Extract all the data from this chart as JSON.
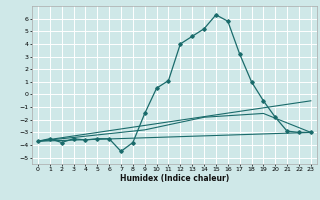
{
  "title": "",
  "xlabel": "Humidex (Indice chaleur)",
  "background_color": "#cfe8e8",
  "grid_color": "#ffffff",
  "line_color": "#1a6b6b",
  "xlim": [
    -0.5,
    23.5
  ],
  "ylim": [
    -5.5,
    7.0
  ],
  "xticks": [
    0,
    1,
    2,
    3,
    4,
    5,
    6,
    7,
    8,
    9,
    10,
    11,
    12,
    13,
    14,
    15,
    16,
    17,
    18,
    19,
    20,
    21,
    22,
    23
  ],
  "yticks": [
    -5,
    -4,
    -3,
    -2,
    -1,
    0,
    1,
    2,
    3,
    4,
    5,
    6
  ],
  "series_main": [
    [
      0,
      -3.7
    ],
    [
      1,
      -3.5
    ],
    [
      2,
      -3.8
    ],
    [
      3,
      -3.5
    ],
    [
      4,
      -3.6
    ],
    [
      5,
      -3.5
    ],
    [
      6,
      -3.5
    ],
    [
      7,
      -4.5
    ],
    [
      8,
      -3.8
    ],
    [
      9,
      -1.5
    ],
    [
      10,
      0.5
    ],
    [
      11,
      1.1
    ],
    [
      12,
      4.0
    ],
    [
      13,
      4.6
    ],
    [
      14,
      5.2
    ],
    [
      15,
      6.3
    ],
    [
      16,
      5.8
    ],
    [
      17,
      3.2
    ],
    [
      18,
      1.0
    ],
    [
      19,
      -0.5
    ],
    [
      20,
      -1.8
    ],
    [
      21,
      -2.9
    ],
    [
      22,
      -3.0
    ],
    [
      23,
      -3.0
    ]
  ],
  "series_flat": [
    [
      0,
      -3.7
    ],
    [
      23,
      -3.0
    ]
  ],
  "series_rise1": [
    [
      0,
      -3.7
    ],
    [
      23,
      -0.5
    ]
  ],
  "series_rise2": [
    [
      0,
      -3.7
    ],
    [
      9,
      -2.8
    ],
    [
      14,
      -1.8
    ],
    [
      19,
      -1.5
    ],
    [
      23,
      -3.0
    ]
  ]
}
